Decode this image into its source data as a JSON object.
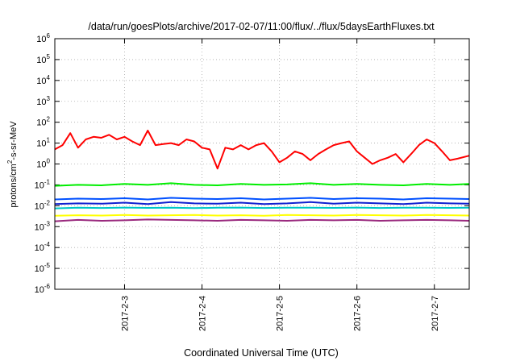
{
  "chart_data": {
    "type": "line",
    "title": "/data/run/goesPlots/archive/2017-02-07/11:00/flux/../flux/5daysEarthFluxes.txt",
    "xlabel": "Coordinated Universal Time (UTC)",
    "ylabel": {
      "prefix": "protons/cm",
      "sup": "2",
      "suffix": "-s-sr-MeV"
    },
    "y_scale": "log",
    "ylim": [
      1e-06,
      1000000.0
    ],
    "y_ticks": [
      {
        "value": 1e-06,
        "base": "10",
        "exp": "-6"
      },
      {
        "value": 1e-05,
        "base": "10",
        "exp": "-5"
      },
      {
        "value": 0.0001,
        "base": "10",
        "exp": "-4"
      },
      {
        "value": 0.001,
        "base": "10",
        "exp": "-3"
      },
      {
        "value": 0.01,
        "base": "10",
        "exp": "-2"
      },
      {
        "value": 0.1,
        "base": "10",
        "exp": "-1"
      },
      {
        "value": 1,
        "base": "10",
        "exp": "0"
      },
      {
        "value": 10,
        "base": "10",
        "exp": "1"
      },
      {
        "value": 100,
        "base": "10",
        "exp": "2"
      },
      {
        "value": 1000,
        "base": "10",
        "exp": "3"
      },
      {
        "value": 10000,
        "base": "10",
        "exp": "4"
      },
      {
        "value": 100000,
        "base": "10",
        "exp": "5"
      },
      {
        "value": 1000000,
        "base": "10",
        "exp": "6"
      }
    ],
    "x_ticks": [
      "2017-2-3",
      "2017-2-4",
      "2017-2-5",
      "2017-2-6",
      "2017-2-7"
    ],
    "xlim_days": [
      -0.9,
      4.45
    ],
    "grid": true,
    "series": [
      {
        "color": "#9a2a7e",
        "t": [
          -0.9,
          -0.6,
          -0.3,
          0.0,
          0.3,
          0.6,
          0.9,
          1.2,
          1.5,
          1.8,
          2.1,
          2.4,
          2.7,
          3.0,
          3.3,
          3.6,
          3.9,
          4.2,
          4.45
        ],
        "v": [
          0.0018,
          0.0021,
          0.0019,
          0.002,
          0.0022,
          0.0021,
          0.002,
          0.0019,
          0.0021,
          0.002,
          0.0019,
          0.0021,
          0.002,
          0.0021,
          0.0019,
          0.002,
          0.0021,
          0.002,
          0.0019
        ]
      },
      {
        "color": "#ffff00",
        "t": [
          -0.9,
          -0.6,
          -0.3,
          0.0,
          0.3,
          0.6,
          0.9,
          1.2,
          1.5,
          1.8,
          2.1,
          2.4,
          2.7,
          3.0,
          3.3,
          3.6,
          3.9,
          4.2,
          4.45
        ],
        "v": [
          0.0033,
          0.0035,
          0.0034,
          0.0036,
          0.0034,
          0.0035,
          0.0036,
          0.0034,
          0.0035,
          0.0033,
          0.0036,
          0.0035,
          0.0034,
          0.0036,
          0.0035,
          0.0034,
          0.0036,
          0.0035,
          0.0034
        ]
      },
      {
        "color": "#00c8c8",
        "t": [
          -0.9,
          -0.6,
          -0.3,
          0.0,
          0.3,
          0.6,
          0.9,
          1.2,
          1.5,
          1.8,
          2.1,
          2.4,
          2.7,
          3.0,
          3.3,
          3.6,
          3.9,
          4.2,
          4.45
        ],
        "v": [
          0.0075,
          0.008,
          0.0078,
          0.0082,
          0.0079,
          0.0081,
          0.0077,
          0.008,
          0.0082,
          0.0078,
          0.008,
          0.0081,
          0.0079,
          0.0082,
          0.0078,
          0.008,
          0.0081,
          0.0079,
          0.008
        ]
      },
      {
        "color": "#0050ff",
        "t": [
          -0.9,
          -0.6,
          -0.3,
          0.0,
          0.3,
          0.6,
          0.9,
          1.2,
          1.5,
          1.8,
          2.1,
          2.4,
          2.7,
          3.0,
          3.3,
          3.6,
          3.9,
          4.2,
          4.45
        ],
        "v": [
          0.02,
          0.022,
          0.021,
          0.023,
          0.02,
          0.024,
          0.022,
          0.021,
          0.023,
          0.02,
          0.022,
          0.024,
          0.021,
          0.023,
          0.022,
          0.02,
          0.023,
          0.022,
          0.021
        ]
      },
      {
        "color": "#1020d0",
        "t": [
          -0.9,
          -0.6,
          -0.3,
          0.0,
          0.3,
          0.6,
          0.9,
          1.2,
          1.5,
          1.8,
          2.1,
          2.4,
          2.7,
          3.0,
          3.3,
          3.6,
          3.9,
          4.2,
          4.45
        ],
        "v": [
          0.012,
          0.013,
          0.0125,
          0.014,
          0.012,
          0.015,
          0.013,
          0.0125,
          0.014,
          0.012,
          0.013,
          0.015,
          0.0125,
          0.014,
          0.013,
          0.012,
          0.014,
          0.013,
          0.0125
        ]
      },
      {
        "color": "#00ee00",
        "t": [
          -0.9,
          -0.6,
          -0.3,
          0.0,
          0.3,
          0.6,
          0.9,
          1.2,
          1.5,
          1.8,
          2.1,
          2.4,
          2.7,
          3.0,
          3.3,
          3.6,
          3.9,
          4.2,
          4.45
        ],
        "v": [
          0.09,
          0.1,
          0.095,
          0.11,
          0.1,
          0.12,
          0.1,
          0.095,
          0.11,
          0.1,
          0.105,
          0.12,
          0.1,
          0.11,
          0.1,
          0.095,
          0.11,
          0.1,
          0.11
        ]
      },
      {
        "color": "#ff0000",
        "t": [
          -0.9,
          -0.8,
          -0.7,
          -0.6,
          -0.5,
          -0.4,
          -0.3,
          -0.2,
          -0.1,
          0.0,
          0.1,
          0.2,
          0.3,
          0.4,
          0.5,
          0.6,
          0.7,
          0.8,
          0.9,
          1.0,
          1.1,
          1.2,
          1.3,
          1.4,
          1.5,
          1.6,
          1.7,
          1.8,
          1.9,
          2.0,
          2.1,
          2.2,
          2.3,
          2.4,
          2.5,
          2.6,
          2.7,
          2.8,
          2.9,
          3.0,
          3.1,
          3.2,
          3.3,
          3.4,
          3.5,
          3.6,
          3.7,
          3.8,
          3.9,
          4.0,
          4.1,
          4.2,
          4.3,
          4.45
        ],
        "v": [
          5,
          8,
          30,
          6,
          15,
          20,
          18,
          25,
          15,
          20,
          12,
          8,
          40,
          8,
          9,
          10,
          8,
          15,
          12,
          6,
          5,
          0.6,
          6,
          5,
          8,
          5,
          8,
          10,
          4,
          1.2,
          2,
          4,
          3,
          1.5,
          3,
          5,
          8,
          10,
          12,
          4,
          2,
          1,
          1.5,
          2,
          3,
          1.2,
          3,
          8,
          15,
          10,
          4,
          1.5,
          1.8,
          2.5
        ]
      }
    ]
  }
}
